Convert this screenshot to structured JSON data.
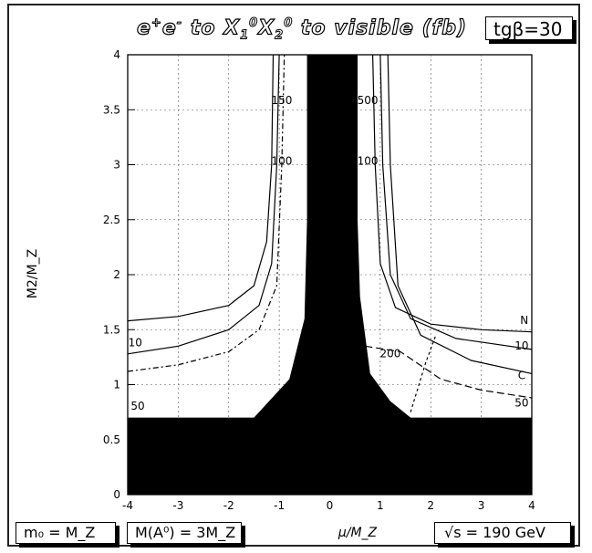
{
  "chart_data": {
    "type": "contour",
    "title": "e+e- to X1^0 X2^0 to visible (fb)",
    "title_parts": {
      "a": "e",
      "b": "+",
      "c": "e",
      "d": "-",
      "e": " to X",
      "f": "1",
      "g": "0",
      "h": "X",
      "i": "2",
      "j": "0",
      "k": " to visible (fb)"
    },
    "xlabel": "μ/M_Z",
    "ylabel": "M2/M_Z",
    "xlim": [
      -4,
      4
    ],
    "ylim": [
      0,
      4
    ],
    "x_ticks": [
      -4,
      -3,
      -2,
      -1,
      0,
      1,
      2,
      3,
      4
    ],
    "y_ticks": [
      0,
      0.5,
      1,
      1.5,
      2,
      2.5,
      3,
      3.5,
      4
    ],
    "grid": true,
    "excluded_region": {
      "color": "#000000",
      "boundary": [
        [
          -4.0,
          0.7
        ],
        [
          -1.5,
          0.7
        ],
        [
          -1.2,
          0.85
        ],
        [
          -0.8,
          1.05
        ],
        [
          -0.5,
          1.6
        ],
        [
          -0.45,
          2.5
        ],
        [
          -0.45,
          4.0
        ],
        [
          0.55,
          4.0
        ],
        [
          0.55,
          2.5
        ],
        [
          0.6,
          1.8
        ],
        [
          0.8,
          1.1
        ],
        [
          1.2,
          0.85
        ],
        [
          1.6,
          0.7
        ],
        [
          4.0,
          0.7
        ]
      ]
    },
    "contour_labels": [
      {
        "text": "150",
        "x": -0.95,
        "y": 3.55
      },
      {
        "text": "500",
        "x": 0.75,
        "y": 3.55
      },
      {
        "text": "100",
        "x": -0.95,
        "y": 3.0
      },
      {
        "text": "100",
        "x": 0.75,
        "y": 3.0
      },
      {
        "text": "10",
        "x": -3.85,
        "y": 1.35
      },
      {
        "text": "50",
        "x": -3.8,
        "y": 0.77
      },
      {
        "text": "200",
        "x": 1.2,
        "y": 1.25
      },
      {
        "text": "N",
        "x": 3.85,
        "y": 1.55
      },
      {
        "text": "10",
        "x": 3.8,
        "y": 1.32
      },
      {
        "text": "C",
        "x": 3.8,
        "y": 1.05
      },
      {
        "text": "50",
        "x": 3.8,
        "y": 0.8
      }
    ]
  },
  "labels": {
    "tanbeta": "tgβ=30",
    "m0": "m₀ = M_Z",
    "ma": "M(A⁰) = 3M_Z",
    "sqrts": "√s = 190 GeV"
  }
}
